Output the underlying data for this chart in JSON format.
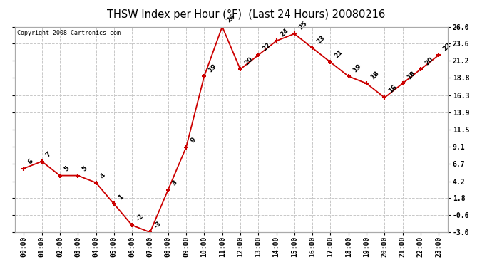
{
  "title": "THSW Index per Hour (°F)  (Last 24 Hours) 20080216",
  "copyright": "Copyright 2008 Cartronics.com",
  "hours": [
    "00:00",
    "01:00",
    "02:00",
    "03:00",
    "04:00",
    "05:00",
    "06:00",
    "07:00",
    "08:00",
    "09:00",
    "10:00",
    "11:00",
    "12:00",
    "13:00",
    "14:00",
    "15:00",
    "16:00",
    "17:00",
    "18:00",
    "19:00",
    "20:00",
    "21:00",
    "22:00",
    "23:00"
  ],
  "yvals": [
    6,
    7,
    5,
    5,
    4,
    1,
    -2,
    -3,
    3,
    9,
    19,
    26,
    20,
    22,
    24,
    25,
    23,
    21,
    19,
    18,
    16,
    18,
    20,
    22
  ],
  "ylim": [
    -3.0,
    26.0
  ],
  "yticks": [
    -3.0,
    -0.6,
    1.8,
    4.2,
    6.7,
    9.1,
    11.5,
    13.9,
    16.3,
    18.8,
    21.2,
    23.6,
    26.0
  ],
  "ytick_labels": [
    "-3.0",
    "-0.6",
    "1.8",
    "4.2",
    "6.7",
    "9.1",
    "11.5",
    "13.9",
    "16.3",
    "18.8",
    "21.2",
    "23.6",
    "26.0"
  ],
  "line_color": "#cc0000",
  "marker_color": "#cc0000",
  "bg_color": "#ffffff",
  "grid_color": "#c8c8c8",
  "title_fontsize": 10.5,
  "tick_fontsize": 7,
  "annotation_fontsize": 6.5
}
